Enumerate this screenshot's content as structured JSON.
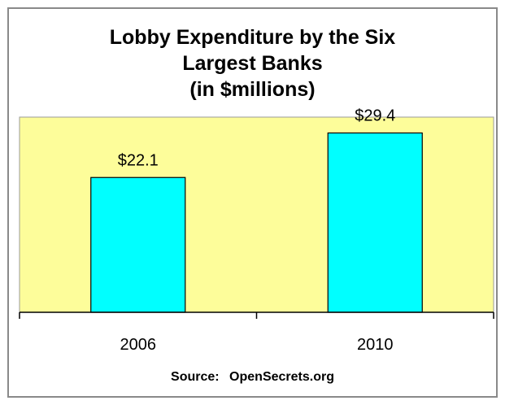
{
  "chart_data": {
    "type": "bar",
    "title_lines": [
      "Lobby Expenditure by the Six",
      "Largest Banks",
      "(in $millions)"
    ],
    "categories": [
      "2006",
      "2010"
    ],
    "values": [
      22.1,
      29.4
    ],
    "data_labels": [
      "$22.1",
      "$29.4"
    ],
    "xlabel": "",
    "ylabel": "",
    "ylim": [
      0,
      32
    ],
    "grid": false,
    "legend": "none",
    "plot_background": "#fdfd9a",
    "bar_color": "#00ffff",
    "source": {
      "label": "Source:",
      "value": "OpenSecrets.org"
    }
  }
}
